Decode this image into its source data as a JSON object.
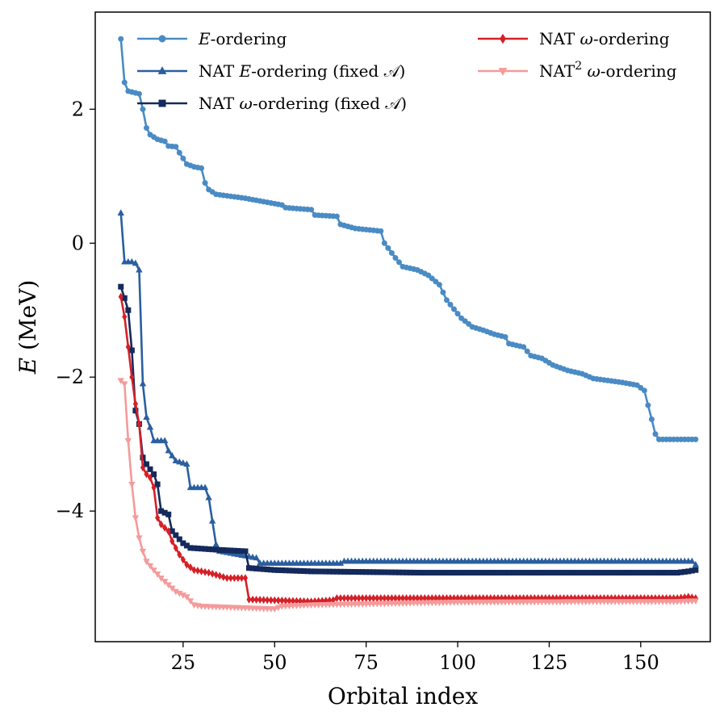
{
  "chart_data": {
    "type": "line",
    "title": "",
    "xlabel": "Orbital index",
    "ylabel": "E (MeV)",
    "ylabel_italic_part": "E",
    "ylabel_rest": " (MeV)",
    "xlim": [
      1,
      169
    ],
    "ylim": [
      -5.95,
      3.45
    ],
    "xticks": [
      25,
      50,
      75,
      100,
      125,
      150
    ],
    "xtick_labels": [
      "25",
      "50",
      "75",
      "100",
      "125",
      "150"
    ],
    "yticks": [
      2,
      0,
      -2,
      -4
    ],
    "ytick_labels": [
      "2",
      "0",
      "−2",
      "−4"
    ],
    "grid": false,
    "legend_placement": "top",
    "series": [
      {
        "name": "E-ordering",
        "legend_italic": "E",
        "legend_rest": "-ordering",
        "color": "#4a8bc4",
        "marker": "circle",
        "x_start": 8,
        "x_end": 165,
        "anchors": [
          [
            8,
            3.05
          ],
          [
            9,
            2.4
          ],
          [
            10,
            2.27
          ],
          [
            13,
            2.23
          ],
          [
            14,
            2.0
          ],
          [
            15,
            1.72
          ],
          [
            16,
            1.62
          ],
          [
            18,
            1.55
          ],
          [
            20,
            1.52
          ],
          [
            21,
            1.45
          ],
          [
            23,
            1.44
          ],
          [
            24,
            1.35
          ],
          [
            26,
            1.18
          ],
          [
            28,
            1.14
          ],
          [
            30,
            1.12
          ],
          [
            31,
            0.9
          ],
          [
            32,
            0.8
          ],
          [
            34,
            0.73
          ],
          [
            38,
            0.7
          ],
          [
            42,
            0.67
          ],
          [
            47,
            0.62
          ],
          [
            52,
            0.57
          ],
          [
            53,
            0.53
          ],
          [
            60,
            0.5
          ],
          [
            61,
            0.42
          ],
          [
            67,
            0.4
          ],
          [
            68,
            0.28
          ],
          [
            72,
            0.22
          ],
          [
            79,
            0.18
          ],
          [
            80,
            0.0
          ],
          [
            83,
            -0.22
          ],
          [
            85,
            -0.35
          ],
          [
            89,
            -0.4
          ],
          [
            92,
            -0.48
          ],
          [
            95,
            -0.62
          ],
          [
            97,
            -0.85
          ],
          [
            101,
            -1.12
          ],
          [
            104,
            -1.25
          ],
          [
            107,
            -1.3
          ],
          [
            110,
            -1.36
          ],
          [
            113,
            -1.4
          ],
          [
            114,
            -1.5
          ],
          [
            118,
            -1.55
          ],
          [
            120,
            -1.68
          ],
          [
            123,
            -1.72
          ],
          [
            126,
            -1.82
          ],
          [
            130,
            -1.9
          ],
          [
            134,
            -1.95
          ],
          [
            137,
            -2.02
          ],
          [
            141,
            -2.05
          ],
          [
            145,
            -2.08
          ],
          [
            149,
            -2.12
          ],
          [
            151,
            -2.2
          ],
          [
            152,
            -2.42
          ],
          [
            153,
            -2.63
          ],
          [
            154,
            -2.85
          ],
          [
            155,
            -2.93
          ],
          [
            165,
            -2.93
          ]
        ]
      },
      {
        "name": "NAT E-ordering (fixed 𝒜)",
        "legend_pre": "NAT ",
        "legend_italic": "E",
        "legend_rest": "-ordering (fixed 𝒜)",
        "color": "#2a5fa0",
        "marker": "triangle-up",
        "x_start": 8,
        "x_end": 165,
        "anchors": [
          [
            8,
            0.45
          ],
          [
            9,
            -0.28
          ],
          [
            11,
            -0.28
          ],
          [
            12,
            -0.3
          ],
          [
            13,
            -0.4
          ],
          [
            14,
            -2.1
          ],
          [
            15,
            -2.6
          ],
          [
            16,
            -2.75
          ],
          [
            17,
            -2.95
          ],
          [
            20,
            -2.95
          ],
          [
            21,
            -3.1
          ],
          [
            23,
            -3.25
          ],
          [
            26,
            -3.3
          ],
          [
            27,
            -3.65
          ],
          [
            31,
            -3.65
          ],
          [
            32,
            -3.8
          ],
          [
            34,
            -4.5
          ],
          [
            35,
            -4.6
          ],
          [
            40,
            -4.65
          ],
          [
            45,
            -4.7
          ],
          [
            46,
            -4.78
          ],
          [
            68,
            -4.78
          ],
          [
            69,
            -4.75
          ],
          [
            164,
            -4.75
          ],
          [
            165,
            -4.8
          ]
        ]
      },
      {
        "name": "NAT ω-ordering (fixed 𝒜)",
        "legend_pre": "NAT ",
        "legend_italic": "ω",
        "legend_rest": "-ordering (fixed 𝒜)",
        "color": "#142a5c",
        "marker": "square",
        "x_start": 8,
        "x_end": 165,
        "anchors": [
          [
            8,
            -0.65
          ],
          [
            9,
            -0.82
          ],
          [
            10,
            -1.0
          ],
          [
            11,
            -1.6
          ],
          [
            12,
            -2.5
          ],
          [
            13,
            -2.7
          ],
          [
            14,
            -3.2
          ],
          [
            15,
            -3.3
          ],
          [
            17,
            -3.45
          ],
          [
            18,
            -3.6
          ],
          [
            19,
            -4.0
          ],
          [
            21,
            -4.05
          ],
          [
            22,
            -4.3
          ],
          [
            25,
            -4.48
          ],
          [
            27,
            -4.55
          ],
          [
            35,
            -4.58
          ],
          [
            42,
            -4.6
          ],
          [
            43,
            -4.85
          ],
          [
            50,
            -4.88
          ],
          [
            60,
            -4.9
          ],
          [
            90,
            -4.92
          ],
          [
            150,
            -4.92
          ],
          [
            160,
            -4.92
          ],
          [
            163,
            -4.9
          ],
          [
            165,
            -4.88
          ]
        ]
      },
      {
        "name": "NAT ω-ordering",
        "legend_pre": "NAT ",
        "legend_italic": "ω",
        "legend_rest": "-ordering",
        "color": "#d42027",
        "marker": "diamond",
        "x_start": 8,
        "x_end": 165,
        "anchors": [
          [
            8,
            -0.8
          ],
          [
            9,
            -1.1
          ],
          [
            10,
            -1.55
          ],
          [
            11,
            -2.0
          ],
          [
            12,
            -2.4
          ],
          [
            13,
            -2.7
          ],
          [
            14,
            -3.35
          ],
          [
            15,
            -3.45
          ],
          [
            16,
            -3.5
          ],
          [
            17,
            -3.65
          ],
          [
            18,
            -4.1
          ],
          [
            19,
            -4.2
          ],
          [
            21,
            -4.3
          ],
          [
            22,
            -4.45
          ],
          [
            24,
            -4.65
          ],
          [
            26,
            -4.8
          ],
          [
            28,
            -4.88
          ],
          [
            32,
            -4.92
          ],
          [
            37,
            -5.0
          ],
          [
            42,
            -5.0
          ],
          [
            43,
            -5.32
          ],
          [
            60,
            -5.35
          ],
          [
            66,
            -5.33
          ],
          [
            67,
            -5.3
          ],
          [
            100,
            -5.3
          ],
          [
            160,
            -5.3
          ],
          [
            163,
            -5.28
          ],
          [
            165,
            -5.3
          ]
        ]
      },
      {
        "name": "NAT² ω-ordering",
        "legend_pre": "NAT",
        "legend_sup": "2",
        "legend_italic": "ω",
        "legend_rest": "-ordering",
        "color": "#f59a9a",
        "marker": "triangle-down",
        "x_start": 8,
        "x_end": 165,
        "anchors": [
          [
            8,
            -2.05
          ],
          [
            9,
            -2.1
          ],
          [
            10,
            -2.95
          ],
          [
            11,
            -3.6
          ],
          [
            12,
            -4.1
          ],
          [
            13,
            -4.4
          ],
          [
            14,
            -4.6
          ],
          [
            15,
            -4.75
          ],
          [
            17,
            -4.88
          ],
          [
            19,
            -5.0
          ],
          [
            21,
            -5.1
          ],
          [
            23,
            -5.2
          ],
          [
            26,
            -5.28
          ],
          [
            28,
            -5.4
          ],
          [
            30,
            -5.42
          ],
          [
            40,
            -5.44
          ],
          [
            50,
            -5.46
          ],
          [
            52,
            -5.42
          ],
          [
            60,
            -5.4
          ],
          [
            100,
            -5.36
          ],
          [
            140,
            -5.35
          ],
          [
            160,
            -5.35
          ],
          [
            165,
            -5.34
          ]
        ]
      }
    ]
  }
}
